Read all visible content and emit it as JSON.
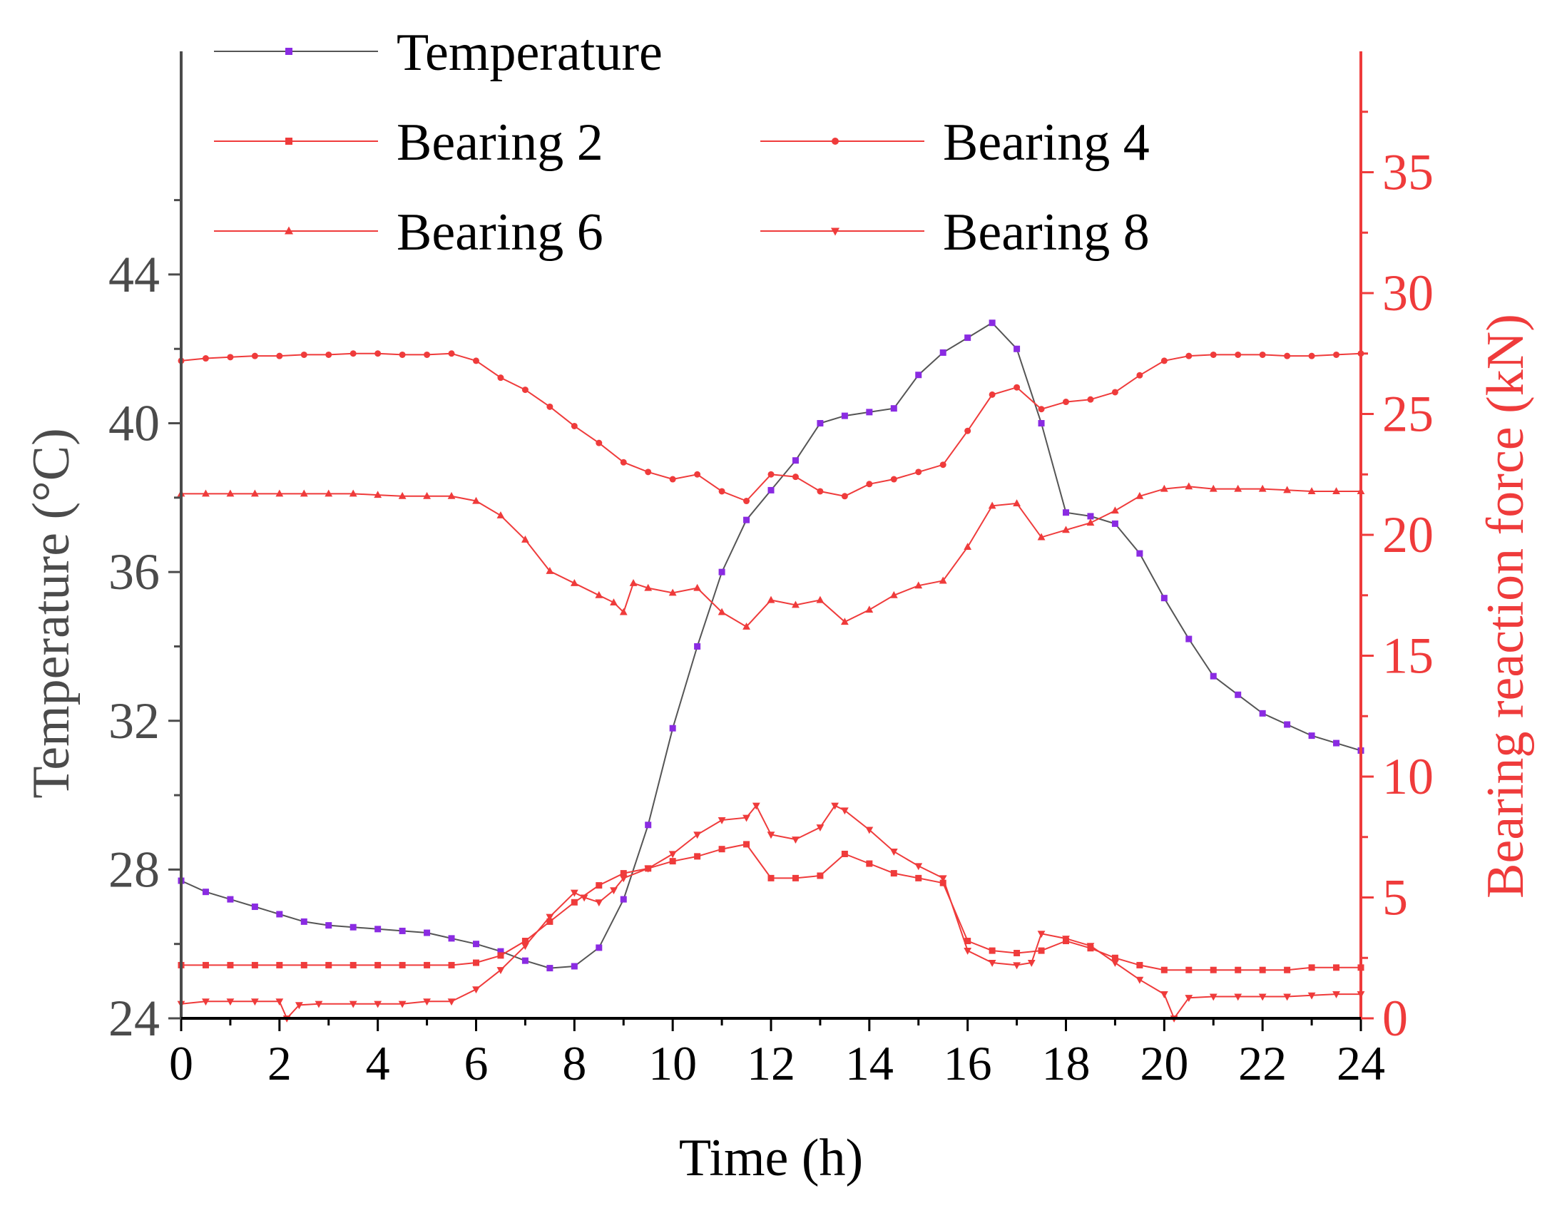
{
  "chart_data": {
    "type": "line",
    "title": "",
    "xlabel": "Time (h)",
    "ylabel": "Temperature (°C)",
    "y2label": "Bearing reaction force (kN)",
    "xlim": [
      0,
      24
    ],
    "ylim": [
      24,
      50
    ],
    "y2lim": [
      0,
      40
    ],
    "xticks": [
      0,
      2,
      4,
      6,
      8,
      10,
      12,
      14,
      16,
      18,
      20,
      22,
      24
    ],
    "yticks": [
      24,
      28,
      32,
      36,
      40,
      44
    ],
    "y2ticks": [
      0,
      5,
      10,
      15,
      20,
      25,
      30,
      35
    ],
    "series": [
      {
        "name": "Temperature",
        "axis": "left",
        "color": "#8a2be2",
        "marker": "square",
        "x": [
          0.0,
          0.5,
          1.0,
          1.5,
          2.0,
          2.5,
          3.0,
          3.5,
          4.0,
          4.5,
          5.0,
          5.5,
          6.0,
          6.5,
          7.0,
          7.5,
          8.0,
          8.5,
          9.0,
          9.5,
          10.0,
          10.5,
          11.0,
          11.5,
          12.0,
          12.5,
          13.0,
          13.5,
          14.0,
          14.5,
          15.0,
          15.5,
          16.0,
          16.5,
          17.0,
          17.5,
          18.0,
          18.5,
          19.0,
          19.5,
          20.0,
          20.5,
          21.0,
          21.5,
          22.0,
          22.5,
          23.0,
          23.5,
          24.0
        ],
        "values": [
          27.7,
          27.4,
          27.2,
          27.0,
          26.8,
          26.6,
          26.5,
          26.45,
          26.4,
          26.35,
          26.3,
          26.15,
          26.0,
          25.8,
          25.55,
          25.35,
          25.4,
          25.9,
          27.2,
          29.2,
          31.8,
          34.0,
          36.0,
          37.4,
          38.2,
          39.0,
          40.0,
          40.2,
          40.3,
          40.4,
          41.3,
          41.9,
          42.3,
          42.7,
          42.0,
          40.0,
          37.6,
          37.5,
          37.3,
          36.5,
          35.3,
          34.2,
          33.2,
          32.7,
          32.2,
          31.9,
          31.6,
          31.4,
          31.2
        ]
      },
      {
        "name": "Bearing 2",
        "axis": "right",
        "color": "#ef3b3b",
        "marker": "square",
        "x": [
          0.0,
          0.5,
          1.0,
          1.5,
          2.0,
          2.5,
          3.0,
          3.5,
          4.0,
          4.5,
          5.0,
          5.5,
          6.0,
          6.5,
          7.0,
          7.5,
          8.0,
          8.5,
          9.0,
          9.5,
          10.0,
          10.5,
          11.0,
          11.5,
          12.0,
          12.5,
          13.0,
          13.5,
          14.0,
          14.5,
          15.0,
          15.5,
          16.0,
          16.5,
          17.0,
          17.5,
          18.0,
          18.5,
          19.0,
          19.5,
          20.0,
          20.5,
          21.0,
          21.5,
          22.0,
          22.5,
          23.0,
          23.5,
          24.0
        ],
        "values": [
          2.2,
          2.2,
          2.2,
          2.2,
          2.2,
          2.2,
          2.2,
          2.2,
          2.2,
          2.2,
          2.2,
          2.2,
          2.3,
          2.6,
          3.2,
          4.0,
          4.8,
          5.5,
          6.0,
          6.2,
          6.5,
          6.7,
          7.0,
          7.2,
          5.8,
          5.8,
          5.9,
          6.8,
          6.4,
          6.0,
          5.8,
          5.6,
          3.2,
          2.8,
          2.7,
          2.8,
          3.2,
          2.9,
          2.5,
          2.2,
          2.0,
          2.0,
          2.0,
          2.0,
          2.0,
          2.0,
          2.1,
          2.1,
          2.1
        ]
      },
      {
        "name": "Bearing 4",
        "axis": "right",
        "color": "#ef3b3b",
        "marker": "circle",
        "x": [
          0.0,
          0.5,
          1.0,
          1.5,
          2.0,
          2.5,
          3.0,
          3.5,
          4.0,
          4.5,
          5.0,
          5.5,
          6.0,
          6.5,
          7.0,
          7.5,
          8.0,
          8.5,
          9.0,
          9.5,
          10.0,
          10.5,
          11.0,
          11.5,
          12.0,
          12.5,
          13.0,
          13.5,
          14.0,
          14.5,
          15.0,
          15.5,
          16.0,
          16.5,
          17.0,
          17.5,
          18.0,
          18.5,
          19.0,
          19.5,
          20.0,
          20.5,
          21.0,
          21.5,
          22.0,
          22.5,
          23.0,
          23.5,
          24.0
        ],
        "values": [
          27.2,
          27.3,
          27.35,
          27.4,
          27.4,
          27.45,
          27.45,
          27.5,
          27.5,
          27.45,
          27.45,
          27.5,
          27.2,
          26.5,
          26.0,
          25.3,
          24.5,
          23.8,
          23.0,
          22.6,
          22.3,
          22.5,
          21.8,
          21.4,
          22.5,
          22.4,
          21.8,
          21.6,
          22.1,
          22.3,
          22.6,
          22.9,
          24.3,
          25.8,
          26.1,
          25.2,
          25.5,
          25.6,
          25.9,
          26.6,
          27.2,
          27.4,
          27.45,
          27.45,
          27.45,
          27.4,
          27.4,
          27.45,
          27.5
        ]
      },
      {
        "name": "Bearing 6",
        "axis": "right",
        "color": "#ef3b3b",
        "marker": "triangle-up",
        "x": [
          0.0,
          0.5,
          1.0,
          1.5,
          2.0,
          2.5,
          3.0,
          3.5,
          4.0,
          4.5,
          5.0,
          5.5,
          6.0,
          6.5,
          7.0,
          7.5,
          8.0,
          8.5,
          8.8,
          9.0,
          9.2,
          9.5,
          10.0,
          10.5,
          11.0,
          11.5,
          12.0,
          12.5,
          13.0,
          13.5,
          14.0,
          14.5,
          15.0,
          15.5,
          16.0,
          16.5,
          17.0,
          17.5,
          18.0,
          18.5,
          19.0,
          19.5,
          20.0,
          20.5,
          21.0,
          21.5,
          22.0,
          22.5,
          23.0,
          23.5,
          24.0
        ],
        "values": [
          21.7,
          21.7,
          21.7,
          21.7,
          21.7,
          21.7,
          21.7,
          21.7,
          21.65,
          21.6,
          21.6,
          21.6,
          21.4,
          20.8,
          19.8,
          18.5,
          18.0,
          17.5,
          17.2,
          16.8,
          18.0,
          17.8,
          17.6,
          17.8,
          16.8,
          16.2,
          17.3,
          17.1,
          17.3,
          16.4,
          16.9,
          17.5,
          17.9,
          18.1,
          19.5,
          21.2,
          21.3,
          19.9,
          20.2,
          20.5,
          21.0,
          21.6,
          21.9,
          22.0,
          21.9,
          21.9,
          21.9,
          21.85,
          21.8,
          21.8,
          21.8
        ]
      },
      {
        "name": "Bearing 8",
        "axis": "right",
        "color": "#ef3b3b",
        "marker": "triangle-down",
        "x": [
          0.0,
          0.5,
          1.0,
          1.5,
          2.0,
          2.15,
          2.4,
          2.8,
          3.5,
          4.0,
          4.5,
          5.0,
          5.5,
          6.0,
          6.5,
          7.0,
          7.5,
          8.0,
          8.2,
          8.5,
          8.8,
          9.0,
          9.5,
          10.0,
          10.5,
          11.0,
          11.5,
          11.7,
          12.0,
          12.5,
          13.0,
          13.3,
          13.5,
          14.0,
          14.5,
          15.0,
          15.5,
          16.0,
          16.5,
          17.0,
          17.3,
          17.5,
          18.0,
          18.5,
          19.0,
          19.5,
          20.0,
          20.2,
          20.5,
          21.0,
          21.5,
          22.0,
          22.5,
          23.0,
          23.5,
          24.0
        ],
        "values": [
          0.6,
          0.7,
          0.7,
          0.7,
          0.7,
          0.0,
          0.55,
          0.6,
          0.6,
          0.6,
          0.6,
          0.7,
          0.7,
          1.2,
          2.0,
          3.0,
          4.2,
          5.2,
          5.0,
          4.8,
          5.3,
          5.8,
          6.2,
          6.8,
          7.6,
          8.2,
          8.3,
          8.8,
          7.6,
          7.4,
          7.9,
          8.8,
          8.6,
          7.8,
          6.9,
          6.3,
          5.8,
          2.8,
          2.3,
          2.2,
          2.3,
          3.5,
          3.3,
          3.0,
          2.3,
          1.6,
          1.0,
          0.0,
          0.85,
          0.9,
          0.9,
          0.9,
          0.9,
          0.95,
          1.0,
          1.0
        ]
      }
    ],
    "legend": {
      "entries": [
        "Temperature",
        "Bearing 2",
        "Bearing 4",
        "Bearing 6",
        "Bearing 8"
      ],
      "position": "top-left"
    },
    "colors": {
      "left_axis": "#4b4b4b",
      "right_axis": "#ef3b3b",
      "bottom_axis": "#000000",
      "temperature": "#8a2be2",
      "bearings": "#ef3b3b"
    }
  }
}
